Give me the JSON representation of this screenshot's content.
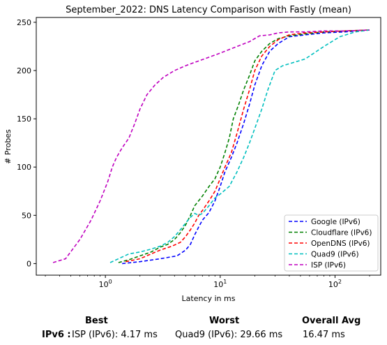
{
  "chart_data": {
    "type": "line",
    "title": "September_2022: DNS Latency Comparison with Fastly (mean)",
    "xlabel": "Latency in ms",
    "ylabel": "# Probes",
    "xscale": "log",
    "xlim": [
      0.25,
      250
    ],
    "ylim": [
      -12,
      255
    ],
    "xticks": [
      {
        "value": 1,
        "label": "10^0"
      },
      {
        "value": 10,
        "label": "10^1"
      },
      {
        "value": 100,
        "label": "10^2"
      }
    ],
    "yticks": [
      0,
      50,
      100,
      150,
      200,
      250
    ],
    "grid": false,
    "legend": "bottom-right",
    "series": [
      {
        "name": "Google (IPv6)",
        "color": "#0000ff",
        "x": [
          1.4,
          2.0,
          3.0,
          4.2,
          5.0,
          5.5,
          6.0,
          6.5,
          7.0,
          8.0,
          9.0,
          10.0,
          11.0,
          12.5,
          14.0,
          16.0,
          18.0,
          20.0,
          23.0,
          27.0,
          32.0,
          40.0,
          55.0,
          80.0,
          120.0,
          200.0
        ],
        "y": [
          0,
          2,
          5,
          8,
          14,
          20,
          30,
          38,
          45,
          53,
          65,
          80,
          95,
          110,
          125,
          145,
          165,
          185,
          205,
          220,
          228,
          235,
          237,
          239,
          240,
          242
        ]
      },
      {
        "name": "Cloudflare (IPv6)",
        "color": "#008000",
        "x": [
          1.3,
          1.6,
          2.0,
          2.5,
          3.0,
          3.5,
          4.0,
          4.5,
          5.0,
          5.5,
          6.0,
          7.0,
          8.0,
          9.0,
          10.0,
          11.0,
          12.0,
          13.0,
          14.5,
          16.0,
          18.0,
          20.0,
          23.0,
          27.0,
          32.0,
          40.0,
          55.0,
          80.0,
          120.0,
          200.0
        ],
        "y": [
          1,
          4,
          8,
          12,
          17,
          20,
          25,
          32,
          40,
          50,
          60,
          70,
          80,
          88,
          100,
          115,
          130,
          150,
          165,
          180,
          195,
          210,
          220,
          228,
          233,
          236,
          238,
          240,
          241,
          242
        ]
      },
      {
        "name": "OpenDNS (IPv6)",
        "color": "#ff0000",
        "x": [
          1.5,
          2.0,
          2.5,
          3.0,
          3.8,
          4.5,
          5.0,
          5.5,
          6.0,
          6.5,
          7.0,
          8.0,
          9.0,
          10.0,
          11.0,
          12.5,
          14.0,
          16.0,
          18.0,
          20.0,
          23.0,
          27.0,
          32.0,
          40.0,
          55.0,
          80.0,
          120.0,
          200.0
        ],
        "y": [
          2,
          5,
          10,
          14,
          18,
          22,
          28,
          35,
          42,
          50,
          55,
          65,
          75,
          88,
          100,
          115,
          135,
          160,
          180,
          200,
          215,
          225,
          232,
          237,
          239,
          240,
          241,
          242
        ]
      },
      {
        "name": "Quad9 (IPv6)",
        "color": "#00bfbf",
        "x": [
          1.1,
          1.3,
          1.6,
          2.0,
          2.5,
          3.0,
          3.5,
          4.0,
          4.5,
          5.0,
          5.5,
          6.0,
          6.5,
          7.0,
          8.0,
          9.0,
          10.0,
          12.0,
          14.0,
          16.0,
          18.0,
          20.0,
          23.0,
          26.0,
          30.0,
          35.0,
          40.0,
          55.0,
          80.0,
          110.0,
          150.0,
          200.0
        ],
        "y": [
          1,
          5,
          10,
          12,
          15,
          18,
          22,
          28,
          35,
          42,
          48,
          52,
          50,
          52,
          60,
          68,
          72,
          80,
          95,
          110,
          125,
          140,
          160,
          180,
          200,
          205,
          207,
          212,
          225,
          235,
          240,
          242
        ]
      },
      {
        "name": "ISP (IPv6)",
        "color": "#bf00bf",
        "x": [
          0.35,
          0.45,
          0.6,
          0.75,
          0.9,
          1.05,
          1.15,
          1.25,
          1.4,
          1.6,
          1.8,
          2.0,
          2.3,
          2.7,
          3.2,
          4.0,
          5.0,
          6.5,
          8.5,
          11.0,
          14.0,
          18.0,
          22.0,
          27.0,
          32.0,
          40.0,
          55.0,
          80.0,
          120.0,
          200.0
        ],
        "y": [
          1,
          5,
          25,
          45,
          65,
          85,
          100,
          110,
          120,
          130,
          145,
          160,
          175,
          185,
          193,
          200,
          205,
          210,
          215,
          220,
          225,
          230,
          236,
          237,
          239,
          240,
          240,
          241,
          241,
          242
        ]
      }
    ]
  },
  "summary": {
    "best_header": "Best",
    "worst_header": "Worst",
    "avg_header": "Overall Avg",
    "row_label": "IPv6 :",
    "best": "ISP (IPv6): 4.17 ms",
    "worst": "Quad9 (IPv6): 29.66 ms",
    "avg": "16.47 ms"
  }
}
